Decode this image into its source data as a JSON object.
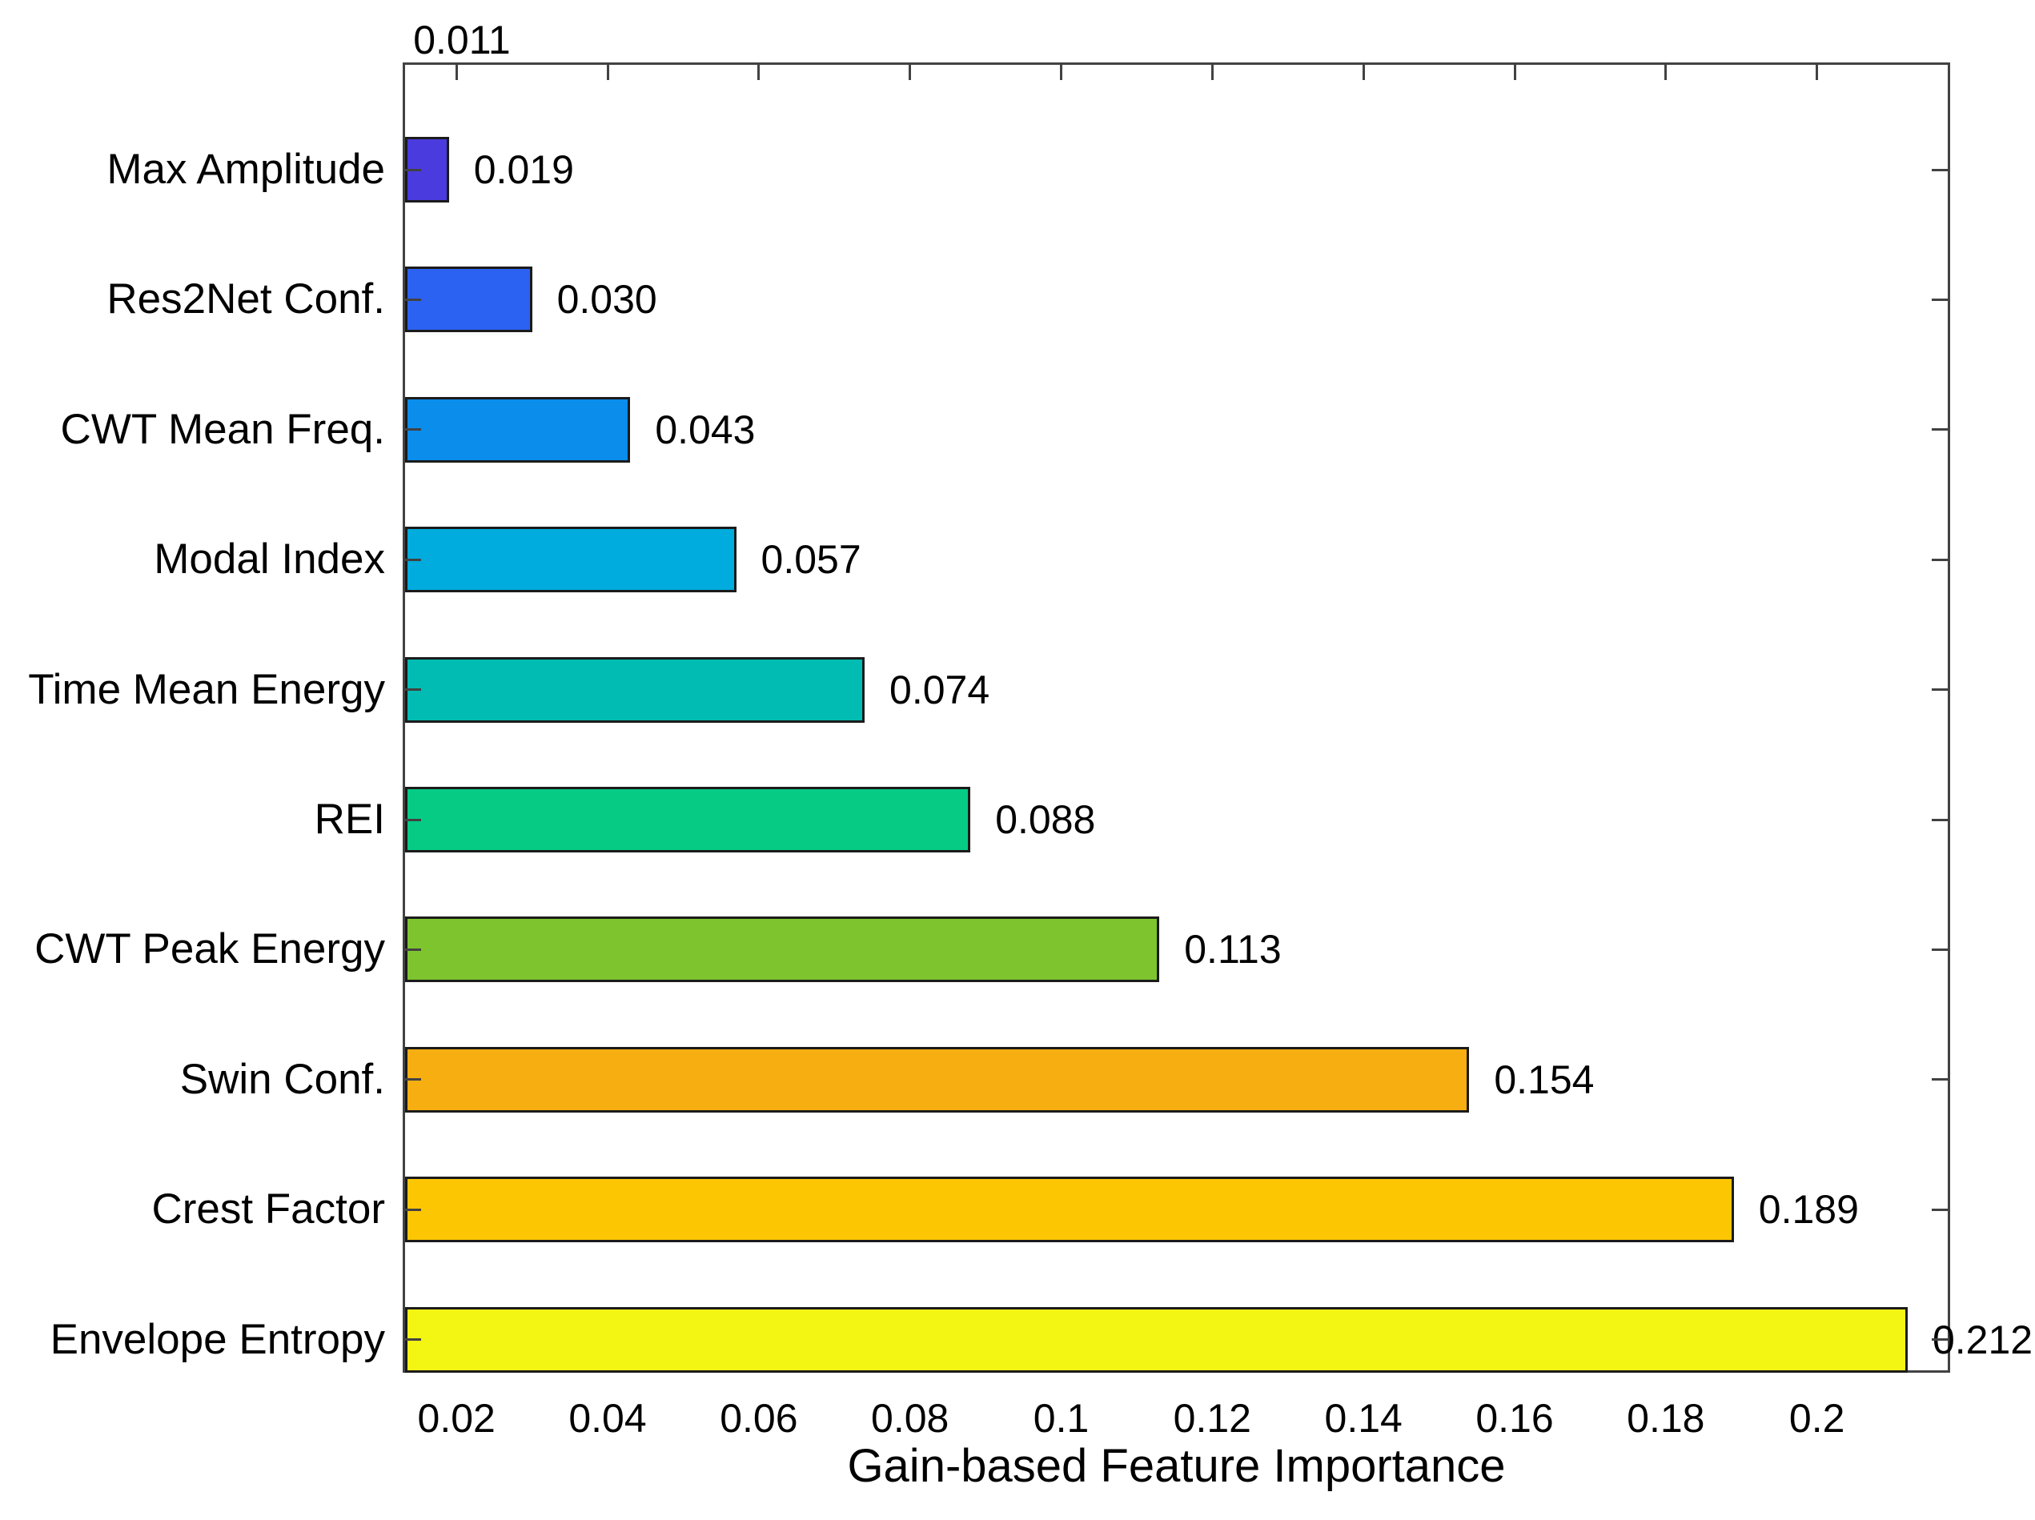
{
  "chart_data": {
    "type": "bar",
    "orientation": "horizontal",
    "title": "",
    "xlabel": "Gain-based Feature Importance",
    "ylabel": "",
    "grid": false,
    "legend": null,
    "xlim": [
      0.0132,
      0.2173
    ],
    "x_ticks": [
      {
        "value": 0.02,
        "label": "0.02"
      },
      {
        "value": 0.04,
        "label": "0.04"
      },
      {
        "value": 0.06,
        "label": "0.06"
      },
      {
        "value": 0.08,
        "label": "0.08"
      },
      {
        "value": 0.1,
        "label": "0.1"
      },
      {
        "value": 0.12,
        "label": "0.12"
      },
      {
        "value": 0.14,
        "label": "0.14"
      },
      {
        "value": 0.16,
        "label": "0.16"
      },
      {
        "value": 0.18,
        "label": "0.18"
      },
      {
        "value": 0.2,
        "label": "0.2"
      }
    ],
    "bars": [
      {
        "category": "Max Amplitude",
        "value": 0.019,
        "label": "0.019",
        "color": "#4A3BDE"
      },
      {
        "category": "Res2Net Conf.",
        "value": 0.03,
        "label": "0.030",
        "color": "#2B62F1"
      },
      {
        "category": "CWT Mean Freq.",
        "value": 0.043,
        "label": "0.043",
        "color": "#0A8DEB"
      },
      {
        "category": "Modal Index",
        "value": 0.057,
        "label": "0.057",
        "color": "#00ACDE"
      },
      {
        "category": "Time Mean Energy",
        "value": 0.074,
        "label": "0.074",
        "color": "#00BCB2"
      },
      {
        "category": "REI",
        "value": 0.088,
        "label": "0.088",
        "color": "#06CB85"
      },
      {
        "category": "CWT Peak Energy",
        "value": 0.113,
        "label": "0.113",
        "color": "#7EC42E"
      },
      {
        "category": "Swin Conf.",
        "value": 0.154,
        "label": "0.154",
        "color": "#F7AE11"
      },
      {
        "category": "Crest Factor",
        "value": 0.189,
        "label": "0.189",
        "color": "#FCC603"
      },
      {
        "category": "Envelope Entropy",
        "value": 0.212,
        "label": "0.212",
        "color": "#F3F513"
      }
    ],
    "offscreen_bar": {
      "value": 0.011,
      "label": "0.011"
    }
  }
}
